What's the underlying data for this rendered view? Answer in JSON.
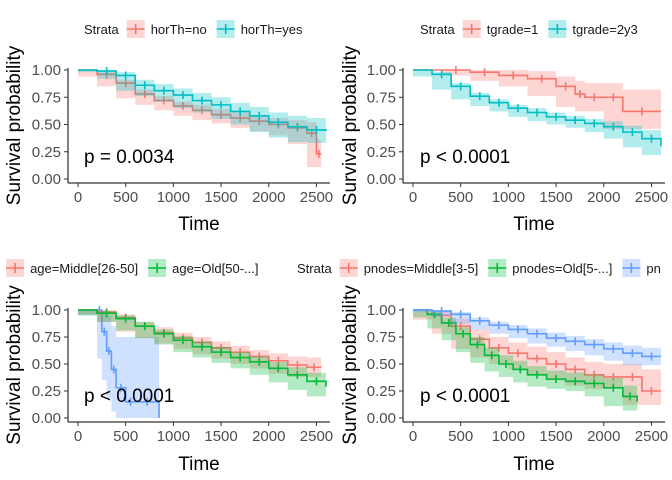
{
  "charts": [
    {
      "panel": "top-left",
      "type": "line",
      "xlabel": "Time",
      "ylabel": "Survival probability",
      "xlim": [
        0,
        2600
      ],
      "ylim": [
        0,
        1
      ],
      "xticks": [
        "0",
        "500",
        "1000",
        "1500",
        "2000",
        "2500"
      ],
      "yticks": [
        "0.00",
        "0.25",
        "0.50",
        "0.75",
        "1.00"
      ],
      "pvalue": "p = 0.0034",
      "legend_title": "Strata",
      "series": [
        {
          "name": "horTh=no",
          "color": "#F8766D",
          "x": [
            0,
            200,
            400,
            600,
            800,
            1000,
            1200,
            1400,
            1600,
            1800,
            2000,
            2200,
            2400,
            2500,
            2550
          ],
          "y": [
            1.0,
            0.96,
            0.88,
            0.78,
            0.72,
            0.67,
            0.63,
            0.59,
            0.56,
            0.53,
            0.5,
            0.47,
            0.42,
            0.23,
            0.23
          ],
          "lower": [
            1.0,
            0.94,
            0.85,
            0.74,
            0.68,
            0.63,
            0.58,
            0.54,
            0.51,
            0.47,
            0.44,
            0.4,
            0.32,
            0.11,
            0.11
          ],
          "upper": [
            1.0,
            0.98,
            0.91,
            0.82,
            0.76,
            0.71,
            0.68,
            0.64,
            0.61,
            0.58,
            0.56,
            0.54,
            0.52,
            0.36,
            0.36
          ]
        },
        {
          "name": "horTh=yes",
          "color": "#00BFC4",
          "x": [
            0,
            200,
            400,
            600,
            800,
            1000,
            1200,
            1400,
            1600,
            1800,
            2000,
            2200,
            2400,
            2600
          ],
          "y": [
            1.0,
            0.99,
            0.95,
            0.86,
            0.81,
            0.77,
            0.72,
            0.68,
            0.62,
            0.58,
            0.52,
            0.48,
            0.45,
            0.44
          ],
          "lower": [
            1.0,
            0.98,
            0.92,
            0.81,
            0.76,
            0.71,
            0.65,
            0.61,
            0.55,
            0.5,
            0.43,
            0.38,
            0.34,
            0.33
          ],
          "upper": [
            1.0,
            1.0,
            0.98,
            0.91,
            0.87,
            0.83,
            0.79,
            0.75,
            0.7,
            0.66,
            0.61,
            0.58,
            0.56,
            0.55
          ]
        }
      ]
    },
    {
      "panel": "top-right",
      "type": "line",
      "xlabel": "Time",
      "ylabel": "Survival probability",
      "xlim": [
        0,
        2600
      ],
      "ylim": [
        0,
        1
      ],
      "xticks": [
        "0",
        "500",
        "1000",
        "1500",
        "2000",
        "2500"
      ],
      "yticks": [
        "0.00",
        "0.25",
        "0.50",
        "0.75",
        "1.00"
      ],
      "pvalue": "p < 0.0001",
      "legend_title": "Strata",
      "series": [
        {
          "name": "tgrade=1",
          "color": "#F8766D",
          "x": [
            0,
            300,
            600,
            900,
            1200,
            1500,
            1700,
            1800,
            2000,
            2200,
            2600
          ],
          "y": [
            1.0,
            1.0,
            0.98,
            0.95,
            0.92,
            0.85,
            0.78,
            0.75,
            0.75,
            0.62,
            0.62
          ],
          "lower": [
            1.0,
            1.0,
            0.95,
            0.9,
            0.85,
            0.76,
            0.66,
            0.62,
            0.62,
            0.46,
            0.46
          ],
          "upper": [
            1.0,
            1.0,
            1.0,
            1.0,
            0.99,
            0.94,
            0.9,
            0.88,
            0.88,
            0.82,
            0.82
          ]
        },
        {
          "name": "tgrade=2y3",
          "color": "#00BFC4",
          "x": [
            0,
            200,
            400,
            600,
            800,
            1000,
            1200,
            1400,
            1600,
            1800,
            2000,
            2200,
            2400,
            2600
          ],
          "y": [
            1.0,
            0.96,
            0.85,
            0.76,
            0.7,
            0.65,
            0.61,
            0.57,
            0.54,
            0.51,
            0.48,
            0.43,
            0.37,
            0.3
          ],
          "lower": [
            1.0,
            0.94,
            0.82,
            0.73,
            0.67,
            0.62,
            0.57,
            0.53,
            0.5,
            0.47,
            0.43,
            0.37,
            0.29,
            0.22
          ],
          "upper": [
            1.0,
            0.98,
            0.88,
            0.79,
            0.73,
            0.68,
            0.65,
            0.61,
            0.58,
            0.55,
            0.53,
            0.49,
            0.45,
            0.39
          ]
        }
      ]
    },
    {
      "panel": "bottom-left",
      "type": "line",
      "xlabel": "Time",
      "ylabel": "Survival probability",
      "xlim": [
        0,
        2600
      ],
      "ylim": [
        0,
        1
      ],
      "xticks": [
        "0",
        "500",
        "1000",
        "1500",
        "2000",
        "2500"
      ],
      "yticks": [
        "0.00",
        "0.25",
        "0.50",
        "0.75",
        "1.00"
      ],
      "pvalue": "p < 0.0001",
      "legend_title": "ata",
      "series": [
        {
          "name": "",
          "color": "#619CFF",
          "x": [
            0,
            200,
            250,
            300,
            350,
            400,
            500,
            600,
            850
          ],
          "y": [
            1.0,
            1.0,
            0.8,
            0.62,
            0.45,
            0.28,
            0.15,
            0.15,
            0.0
          ],
          "lower": [
            1.0,
            0.95,
            0.55,
            0.35,
            0.18,
            0.06,
            0.0,
            0.0,
            0.0
          ],
          "upper": [
            1.0,
            1.0,
            1.0,
            0.95,
            0.85,
            0.75,
            0.75,
            0.75,
            0.75
          ]
        },
        {
          "name": "age=Middle[26-50]",
          "color": "#F8766D",
          "x": [
            0,
            200,
            400,
            600,
            800,
            1000,
            1200,
            1400,
            1600,
            1800,
            2000,
            2200,
            2400,
            2550
          ],
          "y": [
            1.0,
            0.98,
            0.93,
            0.85,
            0.79,
            0.74,
            0.7,
            0.65,
            0.61,
            0.57,
            0.53,
            0.49,
            0.47,
            0.47
          ],
          "lower": [
            1.0,
            0.96,
            0.89,
            0.8,
            0.74,
            0.69,
            0.64,
            0.59,
            0.55,
            0.5,
            0.46,
            0.41,
            0.38,
            0.38
          ],
          "upper": [
            1.0,
            1.0,
            0.96,
            0.89,
            0.84,
            0.79,
            0.75,
            0.71,
            0.67,
            0.63,
            0.6,
            0.57,
            0.56,
            0.56
          ]
        },
        {
          "name": "age=Old[50-...]",
          "color": "#00BA38",
          "x": [
            0,
            200,
            400,
            600,
            800,
            1000,
            1200,
            1400,
            1600,
            1800,
            2000,
            2200,
            2400,
            2600
          ],
          "y": [
            1.0,
            0.97,
            0.92,
            0.85,
            0.78,
            0.72,
            0.66,
            0.61,
            0.56,
            0.52,
            0.46,
            0.4,
            0.34,
            0.29
          ],
          "lower": [
            1.0,
            0.95,
            0.89,
            0.81,
            0.74,
            0.68,
            0.61,
            0.56,
            0.51,
            0.46,
            0.4,
            0.33,
            0.26,
            0.2
          ],
          "upper": [
            1.0,
            0.99,
            0.95,
            0.89,
            0.82,
            0.76,
            0.71,
            0.66,
            0.61,
            0.57,
            0.52,
            0.47,
            0.42,
            0.38
          ]
        }
      ]
    },
    {
      "panel": "bottom-right",
      "type": "line",
      "xlabel": "Time",
      "ylabel": "Survival probability",
      "xlim": [
        0,
        2600
      ],
      "ylim": [
        0,
        1
      ],
      "xticks": [
        "0",
        "500",
        "1000",
        "1500",
        "2000",
        "2500"
      ],
      "yticks": [
        "0.00",
        "0.25",
        "0.50",
        "0.75",
        "1.00"
      ],
      "pvalue": "p < 0.0001",
      "legend_title": "Strata",
      "series": [
        {
          "name": "pnodes=Middle[3-5]",
          "color": "#F8766D",
          "x": [
            0,
            200,
            400,
            600,
            800,
            1000,
            1200,
            1400,
            1600,
            1800,
            2000,
            2200,
            2400,
            2600
          ],
          "y": [
            1.0,
            0.95,
            0.85,
            0.73,
            0.65,
            0.6,
            0.55,
            0.5,
            0.45,
            0.4,
            0.38,
            0.38,
            0.25,
            0.25
          ],
          "lower": [
            1.0,
            0.91,
            0.78,
            0.64,
            0.56,
            0.5,
            0.45,
            0.4,
            0.35,
            0.3,
            0.27,
            0.27,
            0.12,
            0.12
          ],
          "upper": [
            1.0,
            0.99,
            0.92,
            0.82,
            0.75,
            0.7,
            0.66,
            0.61,
            0.56,
            0.52,
            0.5,
            0.5,
            0.45,
            0.45
          ]
        },
        {
          "name": "pnodes=Old[5-...]",
          "color": "#00BA38",
          "x": [
            0,
            150,
            300,
            450,
            600,
            750,
            900,
            1050,
            1200,
            1400,
            1600,
            1800,
            2000,
            2200,
            2350
          ],
          "y": [
            1.0,
            0.96,
            0.88,
            0.78,
            0.68,
            0.58,
            0.5,
            0.45,
            0.4,
            0.36,
            0.34,
            0.32,
            0.28,
            0.2,
            0.15
          ],
          "lower": [
            1.0,
            0.93,
            0.83,
            0.72,
            0.61,
            0.51,
            0.43,
            0.38,
            0.33,
            0.29,
            0.27,
            0.25,
            0.2,
            0.11,
            0.07
          ],
          "upper": [
            1.0,
            0.99,
            0.93,
            0.84,
            0.75,
            0.65,
            0.58,
            0.53,
            0.48,
            0.44,
            0.42,
            0.4,
            0.37,
            0.3,
            0.26
          ]
        },
        {
          "name": "pn",
          "color": "#619CFF",
          "x": [
            0,
            200,
            400,
            600,
            800,
            1000,
            1200,
            1400,
            1600,
            1800,
            2000,
            2200,
            2400,
            2600
          ],
          "y": [
            1.0,
            0.99,
            0.96,
            0.9,
            0.86,
            0.82,
            0.78,
            0.74,
            0.71,
            0.68,
            0.64,
            0.6,
            0.57,
            0.57
          ],
          "lower": [
            1.0,
            0.98,
            0.94,
            0.87,
            0.82,
            0.78,
            0.74,
            0.69,
            0.66,
            0.62,
            0.58,
            0.53,
            0.49,
            0.49
          ],
          "upper": [
            1.0,
            1.0,
            0.98,
            0.93,
            0.89,
            0.86,
            0.83,
            0.79,
            0.76,
            0.73,
            0.7,
            0.67,
            0.65,
            0.65
          ]
        }
      ]
    }
  ]
}
